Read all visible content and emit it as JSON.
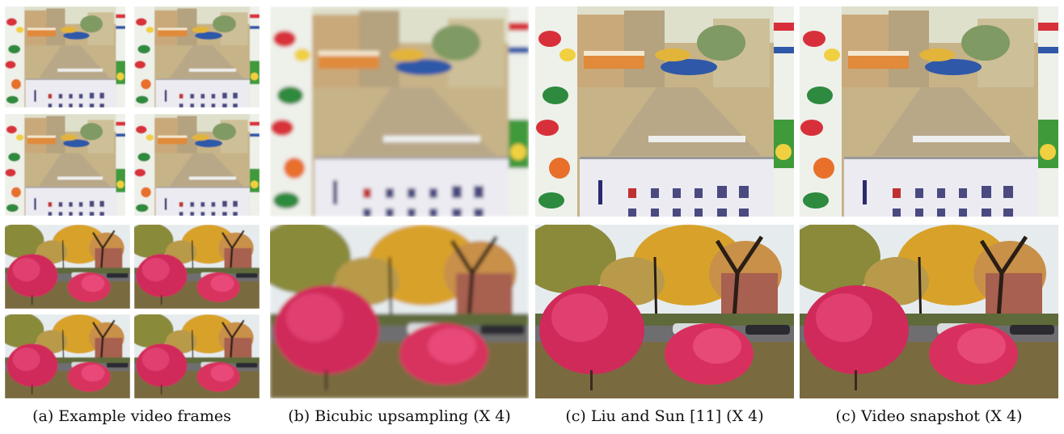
{
  "figure": {
    "captions": [
      "(a) Example video frames",
      "(b) Bicubic upsampling (X 4)",
      "(c) Liu and Sun [11] (X 4)",
      "(c) Video snapshot (X 4)"
    ]
  }
}
